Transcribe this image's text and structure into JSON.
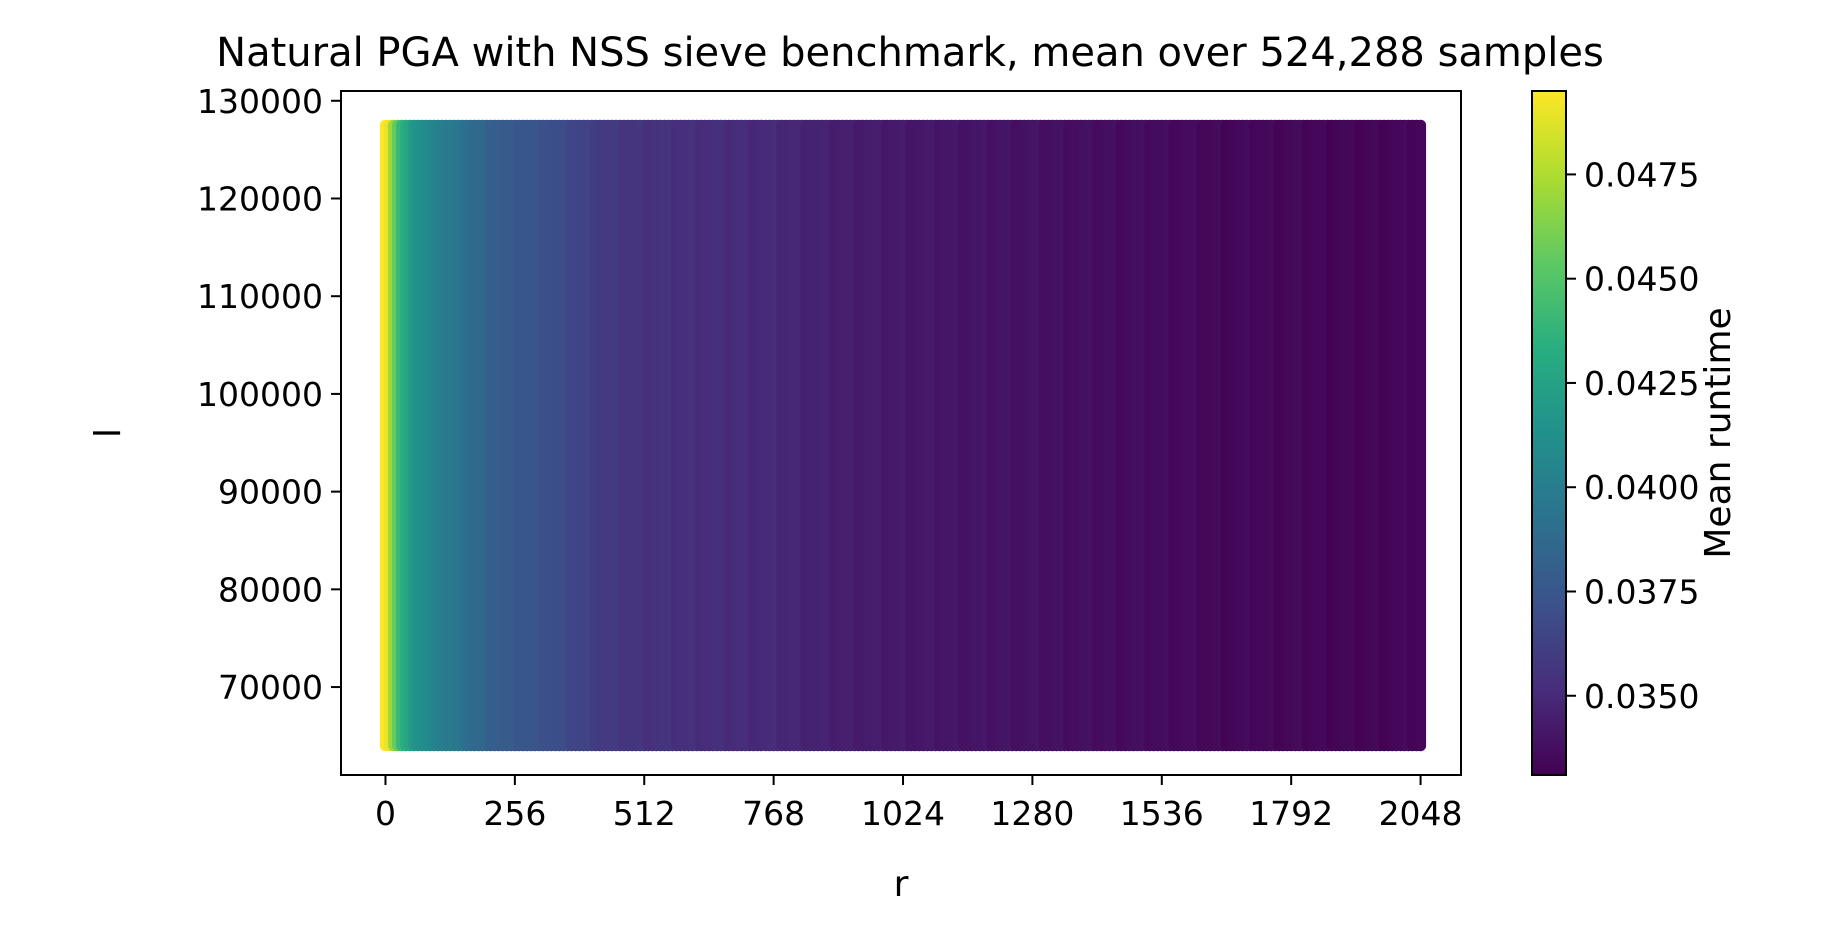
{
  "chart_data": {
    "type": "scatter",
    "title": "Natural PGA with NSS sieve benchmark, mean over 524,288 samples",
    "xlabel": "r",
    "ylabel": "l",
    "xlim": [
      -88,
      2128
    ],
    "ylim": [
      61000,
      131000
    ],
    "xticks": [
      0,
      256,
      512,
      768,
      1024,
      1280,
      1536,
      1792,
      2048
    ],
    "yticks": [
      70000,
      80000,
      90000,
      100000,
      110000,
      120000,
      130000
    ],
    "x_range": [
      0,
      2048
    ],
    "y_range": [
      64000,
      127500
    ],
    "colorbar": {
      "label": "Mean runtime",
      "range": [
        0.0331,
        0.0495
      ],
      "ticks": [
        0.035,
        0.0375,
        0.04,
        0.0425,
        0.045,
        0.0475
      ],
      "tick_labels": [
        "0.0350",
        "0.0375",
        "0.0400",
        "0.0425",
        "0.0450",
        "0.0475"
      ],
      "colormap": "viridis"
    },
    "grid": false,
    "runtime_profile": {
      "r": [
        0,
        8,
        16,
        32,
        48,
        64,
        96,
        128,
        160,
        192,
        224,
        256,
        320,
        384,
        448,
        512,
        640,
        768,
        896,
        1024,
        1152,
        1280,
        1408,
        1536,
        1664,
        1792,
        1920,
        2048
      ],
      "mean_runtime": [
        0.0495,
        0.049,
        0.047,
        0.044,
        0.0425,
        0.0415,
        0.0405,
        0.0398,
        0.0392,
        0.0385,
        0.038,
        0.0376,
        0.0372,
        0.0365,
        0.0358,
        0.0355,
        0.0352,
        0.035,
        0.0345,
        0.0342,
        0.034,
        0.0339,
        0.0337,
        0.0336,
        0.0334,
        0.0334,
        0.0333,
        0.0334
      ]
    }
  }
}
